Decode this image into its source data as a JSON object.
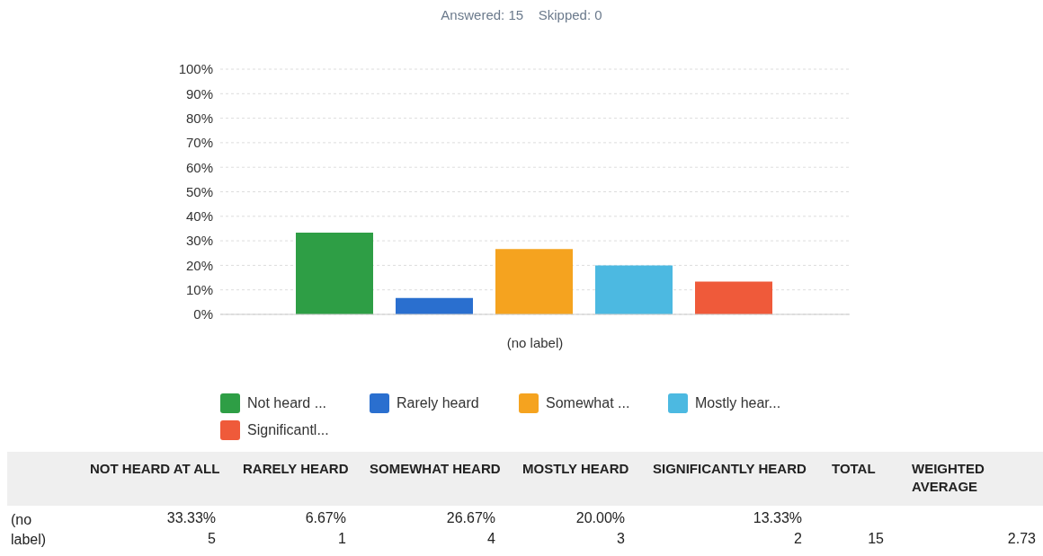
{
  "chart_data": {
    "type": "bar",
    "subtitle": "Answered: 15    Skipped: 0",
    "categories": [
      "(no label)"
    ],
    "series": [
      {
        "name": "Not heard ...",
        "color": "#2e9e45",
        "values": [
          33.33
        ]
      },
      {
        "name": "Rarely heard",
        "color": "#2a6fcf",
        "values": [
          6.67
        ]
      },
      {
        "name": "Somewhat ...",
        "color": "#f5a31f",
        "values": [
          26.67
        ]
      },
      {
        "name": "Mostly hear...",
        "color": "#4cb9e1",
        "values": [
          20.0
        ]
      },
      {
        "name": "Significantl...",
        "color": "#ef5a3a",
        "values": [
          13.33
        ]
      }
    ],
    "ylim": [
      0,
      100
    ],
    "yticks": [
      {
        "value": 0,
        "label": "0%"
      },
      {
        "value": 10,
        "label": "10%"
      },
      {
        "value": 20,
        "label": "20%"
      },
      {
        "value": 30,
        "label": "30%"
      },
      {
        "value": 40,
        "label": "40%"
      },
      {
        "value": 50,
        "label": "50%"
      },
      {
        "value": 60,
        "label": "60%"
      },
      {
        "value": 70,
        "label": "70%"
      },
      {
        "value": 80,
        "label": "80%"
      },
      {
        "value": 90,
        "label": "90%"
      },
      {
        "value": 100,
        "label": "100%"
      }
    ],
    "grid": "y",
    "legend": "bottom",
    "annotations": [
      "NOT HEARD AT ALL",
      "RARELY HEARD",
      "SOMEWHAT HEARD",
      "MOSTLY HEARD",
      "SIGNIFICANTLY HEARD",
      "TOTAL",
      "WEIGHTED AVERAGE",
      "(no label)",
      "33.33%",
      "6.67%",
      "26.67%",
      "20.00%",
      "13.33%",
      "5",
      "1",
      "4",
      "3",
      "2",
      "15",
      "2.73"
    ]
  }
}
